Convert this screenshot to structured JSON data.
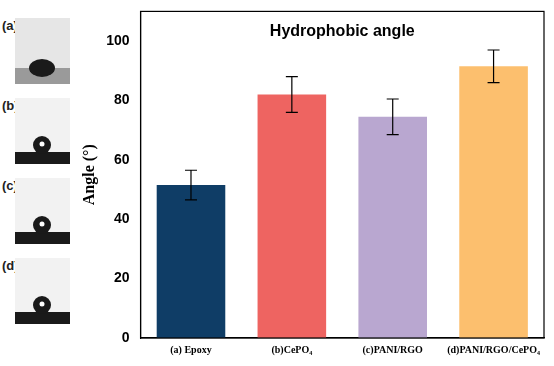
{
  "panel_labels": [
    "(a)",
    "(b)",
    "(c)",
    "(d)"
  ],
  "chart_data": {
    "type": "bar",
    "title": "Hydrophobic angle",
    "y_label": "Angle (°)",
    "categories": [
      "(a) Epoxy",
      "(b)CePO₄",
      "(c)PANI/RGO",
      "(d)PANI/RGO/CePO₄"
    ],
    "values": [
      51.5,
      82,
      74.5,
      91.5
    ],
    "errors": [
      5,
      6,
      6,
      5.5
    ],
    "colors": [
      "#0f3d66",
      "#ee6461",
      "#b9a7d0",
      "#fcbf6e"
    ],
    "ylim": [
      0,
      110
    ],
    "yticks": [
      0,
      20,
      40,
      60,
      80,
      100
    ],
    "grid": false
  }
}
